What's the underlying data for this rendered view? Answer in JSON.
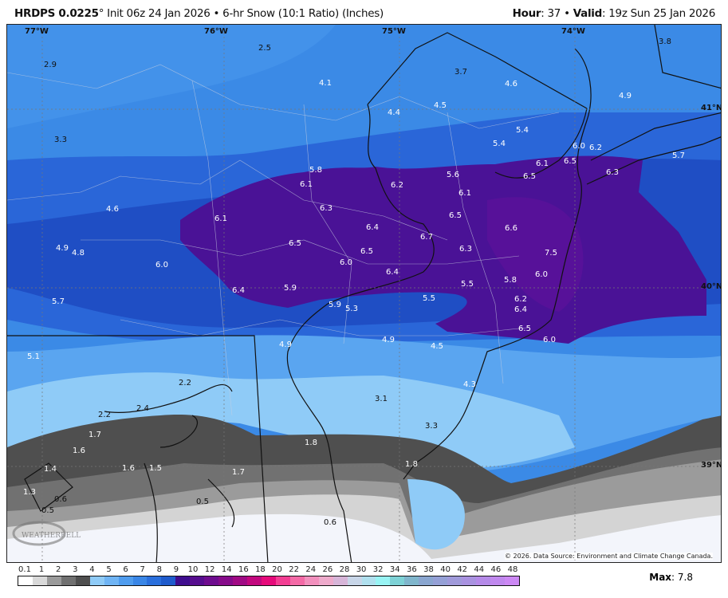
{
  "header": {
    "model": "HRDPS 0.0225",
    "degree": "°",
    "desc": "Init 06z 24 Jan 2026 • 6-hr Snow (10:1 Ratio) (Inches)",
    "hour_label": "Hour",
    "hour_value": ": 37 • ",
    "valid_label": "Valid",
    "valid_value": ": 19z Sun 25 Jan 2026"
  },
  "map": {
    "lon_labels": [
      "77°W",
      "76°W",
      "75°W",
      "74°W"
    ],
    "lat_labels": [
      "41°N",
      "40°N",
      "39°N"
    ],
    "values": [
      "2.9",
      "2.5",
      "4.1",
      "3.7",
      "4.6",
      "3.8",
      "4.9",
      "4.4",
      "4.5",
      "3.3",
      "5.4",
      "5.4",
      "6.0",
      "6.2",
      "6.1",
      "6.5",
      "6.5",
      "6.3",
      "5.7",
      "5.8",
      "6.1",
      "6.2",
      "5.6",
      "6.1",
      "4.6",
      "6.3",
      "6.5",
      "6.1",
      "6.4",
      "6.6",
      "6.7",
      "6.5",
      "6.5",
      "6.3",
      "7.5",
      "4.9",
      "4.8",
      "6.0",
      "6.0",
      "6.4",
      "6.0",
      "5.8",
      "5.5",
      "5.7",
      "6.4",
      "5.9",
      "5.5",
      "6.2",
      "6.4",
      "5.9",
      "5.3",
      "6.5",
      "6.0",
      "5.1",
      "4.9",
      "4.9",
      "4.5",
      "2.2",
      "4.3",
      "3.1",
      "2.2",
      "2.4",
      "1.7",
      "3.3",
      "1.6",
      "1.8",
      "1.4",
      "1.6",
      "1.5",
      "1.7",
      "1.8",
      "1.3",
      "0.6",
      "0.5",
      "0.5",
      "0.6"
    ],
    "logo": "WEATHERBELL",
    "copyright": "© 2026. Data Source: Environment and Climate Change Canada."
  },
  "colorbar": {
    "ticks": [
      "0.1",
      "1",
      "2",
      "3",
      "4",
      "5",
      "6",
      "7",
      "8",
      "9",
      "10",
      "12",
      "14",
      "16",
      "18",
      "20",
      "22",
      "24",
      "26",
      "28",
      "30",
      "32",
      "34",
      "36",
      "38",
      "40",
      "42",
      "44",
      "46",
      "48"
    ],
    "colors": [
      "#ffffff",
      "#d9d9d9",
      "#9a9a9a",
      "#707070",
      "#4f4f4f",
      "#8fcbf7",
      "#6fb4f4",
      "#4f9cee",
      "#3a86e6",
      "#2a6fdc",
      "#1f5bcc",
      "#3f0d8e",
      "#560d8e",
      "#6e0c8e",
      "#860b8a",
      "#a00a84",
      "#c2087e",
      "#e60a7a",
      "#f33e93",
      "#f46aa6",
      "#f290bd",
      "#eeaacb",
      "#d7b5d8",
      "#c8d6e8",
      "#b0e0ee",
      "#98f4f4",
      "#7ed2d6",
      "#80b6cc",
      "#8aa6d0",
      "#95a0d6",
      "#a09ada",
      "#a992e0",
      "#b58ae8",
      "#c088ee",
      "#cc88f4"
    ],
    "max_label": "Max",
    "max_value": ": 7.8"
  }
}
